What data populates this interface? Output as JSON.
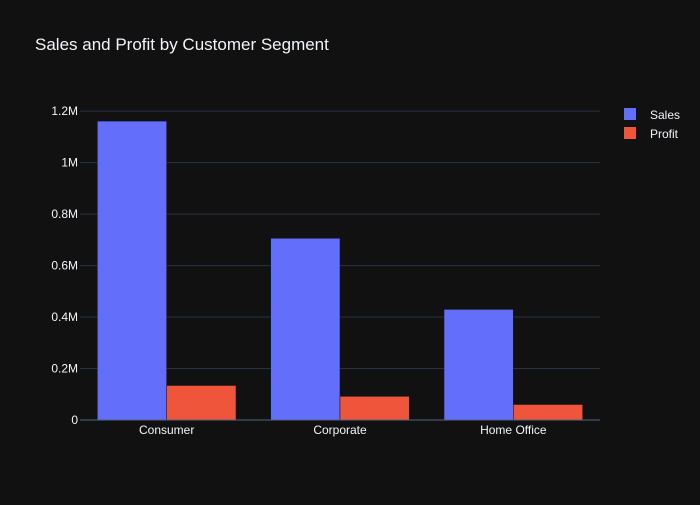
{
  "chart_data": {
    "type": "bar",
    "title": "Sales and Profit by Customer Segment",
    "xlabel": "",
    "ylabel": "",
    "categories": [
      "Consumer",
      "Corporate",
      "Home Office"
    ],
    "series": [
      {
        "name": "Sales",
        "values": [
          1161401,
          706146,
          429653
        ],
        "color": "#636efa"
      },
      {
        "name": "Profit",
        "values": [
          134119,
          91979,
          60299
        ],
        "color": "#ef553b"
      }
    ],
    "ylim": [
      0,
      1220000
    ],
    "yticks": [
      0,
      200000,
      400000,
      600000,
      800000,
      1000000,
      1200000
    ],
    "ytick_labels": [
      "0",
      "0.2M",
      "0.4M",
      "0.6M",
      "0.8M",
      "1M",
      "1.2M"
    ],
    "grid": true,
    "legend_position": "top-right",
    "background_color": "#111111",
    "grid_color": "#283442",
    "text_color": "#f2f5fa"
  }
}
